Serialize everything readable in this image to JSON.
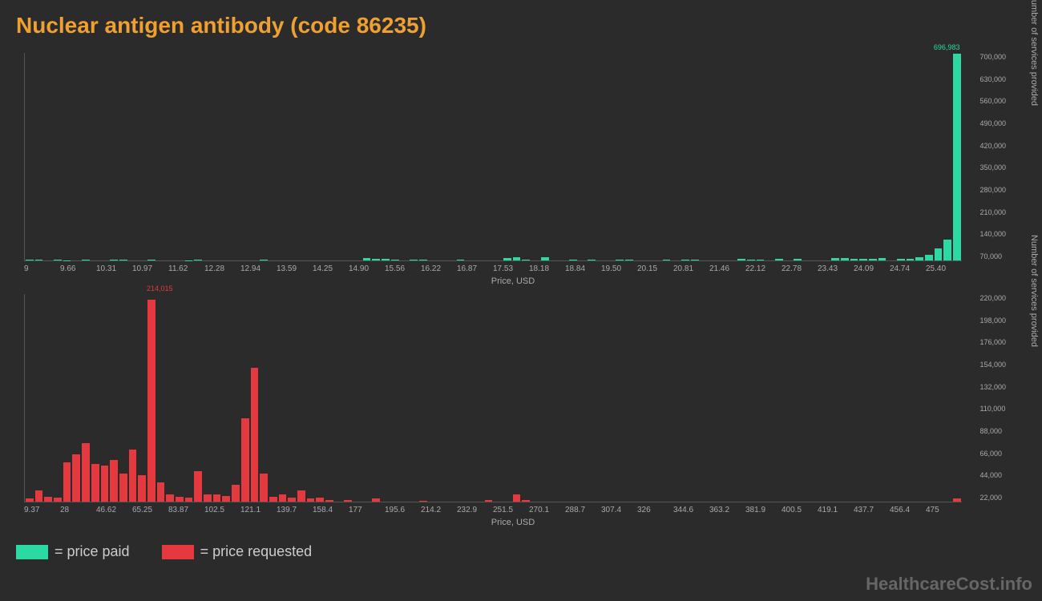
{
  "title": "Nuclear antigen antibody (code 86235)",
  "colors": {
    "background": "#2b2b2b",
    "title": "#f0a030",
    "paid": "#2dd9a3",
    "requested": "#e53940",
    "axis_text": "#aaaaaa",
    "axis_line": "#555555",
    "watermark": "#666666"
  },
  "chart_paid": {
    "type": "bar",
    "x_label": "Price, USD",
    "y_label": "Number of services provided",
    "x_ticks": [
      "9",
      "9.66",
      "10.31",
      "10.97",
      "11.62",
      "12.28",
      "12.94",
      "13.59",
      "14.25",
      "14.90",
      "15.56",
      "16.22",
      "16.87",
      "17.53",
      "18.18",
      "18.84",
      "19.50",
      "20.15",
      "20.81",
      "21.46",
      "22.12",
      "22.78",
      "23.43",
      "24.09",
      "24.74",
      "25.40"
    ],
    "y_ticks": [
      "70,000",
      "140,000",
      "210,000",
      "280,000",
      "350,000",
      "420,000",
      "490,000",
      "560,000",
      "630,000",
      "700,000"
    ],
    "y_max": 700000,
    "peak": {
      "value": 696983,
      "label": "696,983",
      "left_pct": 97
    },
    "values": [
      2000,
      1500,
      0,
      3000,
      1000,
      0,
      2500,
      0,
      0,
      3500,
      1500,
      0,
      0,
      2000,
      0,
      0,
      0,
      1000,
      1500,
      0,
      0,
      0,
      0,
      0,
      0,
      3000,
      0,
      0,
      0,
      0,
      0,
      0,
      0,
      0,
      0,
      0,
      8000,
      5000,
      5000,
      4000,
      0,
      3000,
      2000,
      0,
      0,
      0,
      3000,
      0,
      0,
      0,
      0,
      9000,
      12000,
      4000,
      0,
      10000,
      0,
      0,
      2000,
      0,
      2500,
      0,
      0,
      3000,
      3000,
      0,
      0,
      0,
      4000,
      0,
      4000,
      3000,
      0,
      0,
      0,
      0,
      5000,
      3000,
      4000,
      0,
      5000,
      0,
      6000,
      0,
      0,
      0,
      8000,
      8000,
      6000,
      6000,
      6000,
      9000,
      0,
      5000,
      6000,
      12000,
      18000,
      40000,
      70000,
      696983
    ]
  },
  "chart_requested": {
    "type": "bar",
    "x_label": "Price, USD",
    "y_label": "Number of services provided",
    "x_ticks": [
      "9.37",
      "28",
      "46.62",
      "65.25",
      "83.87",
      "102.5",
      "121.1",
      "139.7",
      "158.4",
      "177",
      "195.6",
      "214.2",
      "232.9",
      "251.5",
      "270.1",
      "288.7",
      "307.4",
      "326",
      "344.6",
      "363.2",
      "381.9",
      "400.5",
      "419.1",
      "437.7",
      "456.4",
      "475"
    ],
    "y_ticks": [
      "22,000",
      "44,000",
      "66,000",
      "88,000",
      "110,000",
      "132,000",
      "154,000",
      "176,000",
      "198,000",
      "220,000"
    ],
    "y_max": 220000,
    "peak": {
      "value": 214015,
      "label": "214,015",
      "left_pct": 13
    },
    "values": [
      3000,
      12000,
      5000,
      4000,
      42000,
      50000,
      62000,
      40000,
      38000,
      44000,
      30000,
      55000,
      28000,
      214015,
      20000,
      8000,
      5000,
      4000,
      32000,
      8000,
      8000,
      6000,
      18000,
      88000,
      142000,
      30000,
      5000,
      8000,
      4000,
      12000,
      3000,
      4000,
      2000,
      0,
      2000,
      0,
      0,
      3000,
      0,
      0,
      0,
      0,
      1000,
      0,
      0,
      0,
      0,
      0,
      0,
      2000,
      0,
      0,
      8000,
      2000,
      0,
      0,
      0,
      0,
      0,
      0,
      0,
      0,
      0,
      0,
      0,
      0,
      0,
      0,
      0,
      0,
      0,
      0,
      0,
      0,
      0,
      0,
      0,
      0,
      0,
      0,
      0,
      0,
      0,
      0,
      0,
      0,
      0,
      0,
      0,
      0,
      0,
      0,
      0,
      0,
      0,
      0,
      0,
      0,
      0,
      3000
    ]
  },
  "legend": {
    "paid_label": "= price paid",
    "requested_label": "= price requested"
  },
  "watermark": "HealthcareCost.info"
}
